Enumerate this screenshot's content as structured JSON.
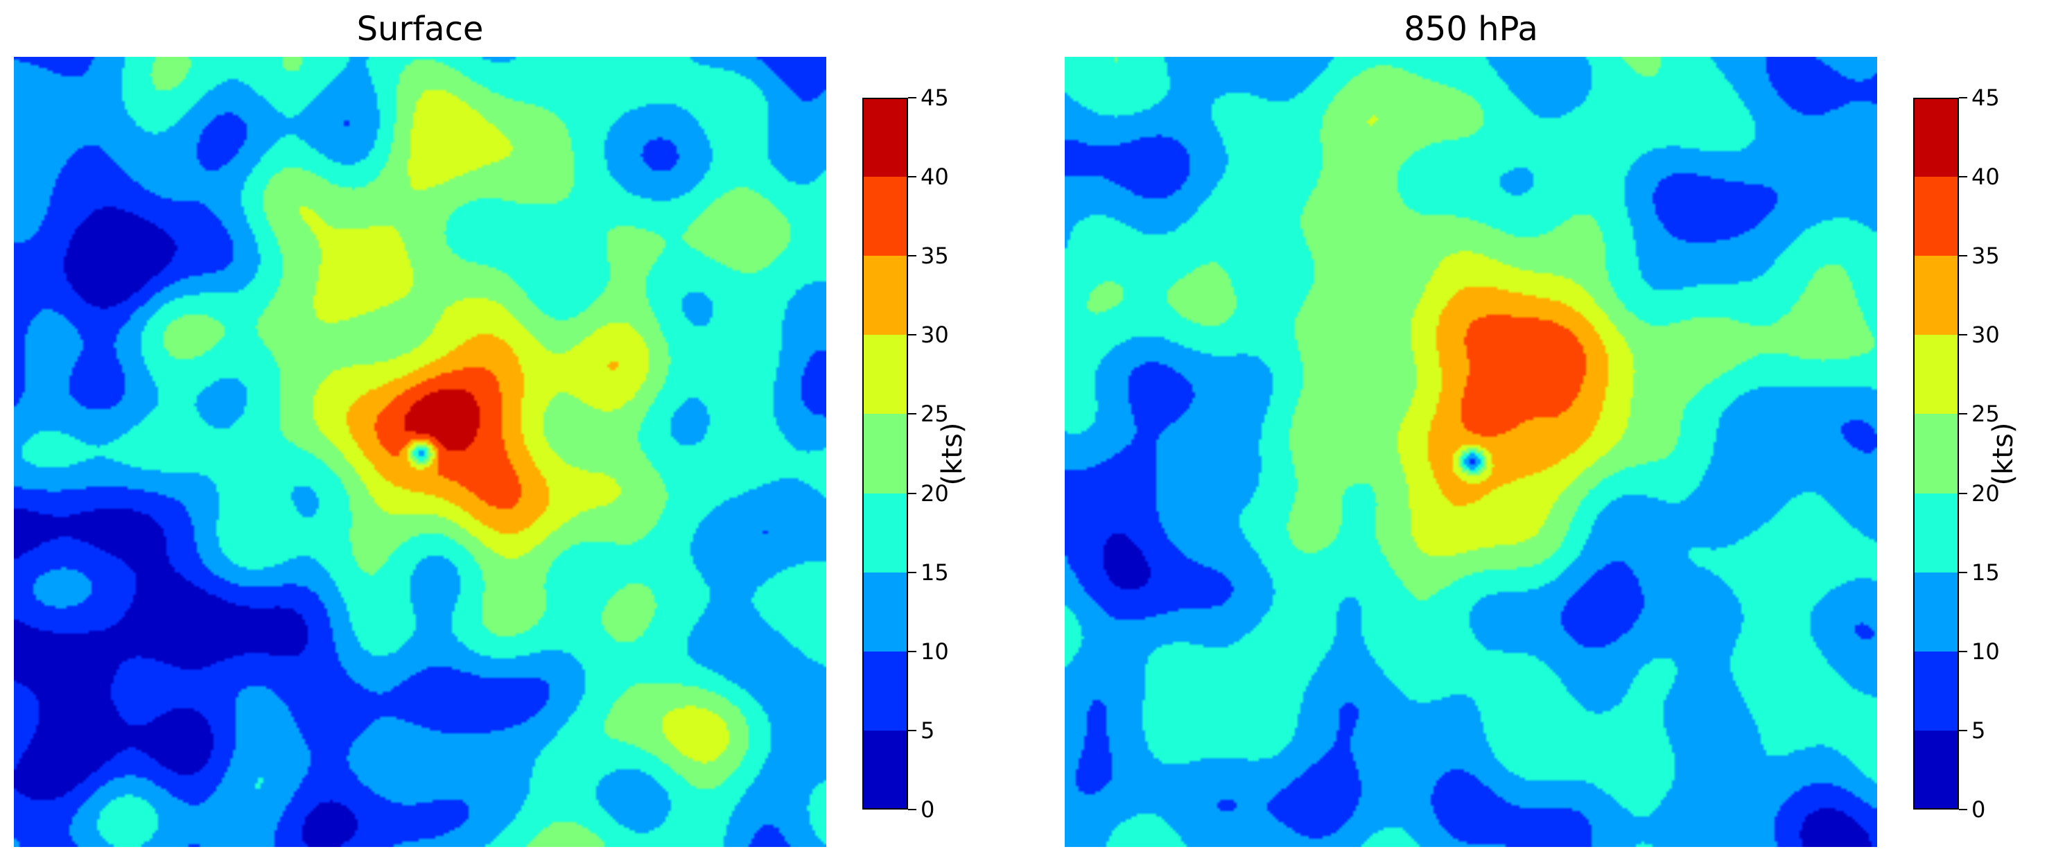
{
  "colors": {
    "levels": [
      "#0000c4",
      "#0030ff",
      "#00a0ff",
      "#1dffd6",
      "#7dff7a",
      "#d6ff1d",
      "#ffae00",
      "#ff4600",
      "#c40000"
    ],
    "label": "#000000"
  },
  "chart_data": [
    {
      "type": "heatmap",
      "title": "Surface",
      "colorbar": {
        "label": "(kts)",
        "ticks": [
          0,
          5,
          10,
          15,
          20,
          25,
          30,
          35,
          40,
          45
        ],
        "range": [
          0,
          45
        ]
      },
      "fields": {
        "background": 9,
        "features": [
          {
            "cx": 0.55,
            "cy": 0.5,
            "r": 0.6,
            "v": 12
          },
          {
            "cx": 0.15,
            "cy": 0.72,
            "r": 0.28,
            "v": -10
          },
          {
            "cx": 0.12,
            "cy": 0.28,
            "r": 0.18,
            "v": -7
          },
          {
            "cx": 0.45,
            "cy": 0.8,
            "r": 0.22,
            "v": -6
          },
          {
            "cx": 0.92,
            "cy": 0.65,
            "r": 0.12,
            "v": -6
          },
          {
            "cx": 0.48,
            "cy": 0.42,
            "r": 0.25,
            "v": 8
          },
          {
            "cx": 0.56,
            "cy": 0.5,
            "r": 0.14,
            "v": 4
          },
          {
            "cx": 0.52,
            "cy": 0.45,
            "r": 0.1,
            "v": 6
          },
          {
            "cx": 0.52,
            "cy": 0.44,
            "r": 0.05,
            "v": 6
          },
          {
            "cx": 0.8,
            "cy": 0.86,
            "r": 0.14,
            "v": 5
          },
          {
            "cx": 0.55,
            "cy": 0.06,
            "r": 0.1,
            "v": 4
          },
          {
            "cx": 0.5,
            "cy": 0.5,
            "r": 0.016,
            "v": -25
          }
        ]
      }
    },
    {
      "type": "heatmap",
      "title": "850 hPa",
      "colorbar": {
        "label": "(kts)",
        "ticks": [
          0,
          5,
          10,
          15,
          20,
          25,
          30,
          35,
          40,
          45
        ],
        "range": [
          0,
          45
        ]
      },
      "fields": {
        "background": 13,
        "features": [
          {
            "cx": 0.5,
            "cy": 0.38,
            "r": 0.45,
            "v": 7
          },
          {
            "cx": 0.1,
            "cy": 0.55,
            "r": 0.18,
            "v": -6
          },
          {
            "cx": 0.78,
            "cy": 0.55,
            "r": 0.14,
            "v": -6
          },
          {
            "cx": 0.8,
            "cy": 0.15,
            "r": 0.16,
            "v": -5
          },
          {
            "cx": 0.5,
            "cy": 0.92,
            "r": 0.2,
            "v": -4
          },
          {
            "cx": 0.54,
            "cy": 0.42,
            "r": 0.22,
            "v": 6
          },
          {
            "cx": 0.8,
            "cy": 0.4,
            "r": 0.12,
            "v": 4
          },
          {
            "cx": 0.52,
            "cy": 0.42,
            "r": 0.14,
            "v": 8
          },
          {
            "cx": 0.5,
            "cy": 0.42,
            "r": 0.09,
            "v": 6
          },
          {
            "cx": 0.52,
            "cy": 0.44,
            "r": 0.04,
            "v": 6
          },
          {
            "cx": 0.4,
            "cy": 0.85,
            "r": 0.1,
            "v": 4
          },
          {
            "cx": 0.5,
            "cy": 0.51,
            "r": 0.016,
            "v": -25
          }
        ]
      }
    }
  ]
}
